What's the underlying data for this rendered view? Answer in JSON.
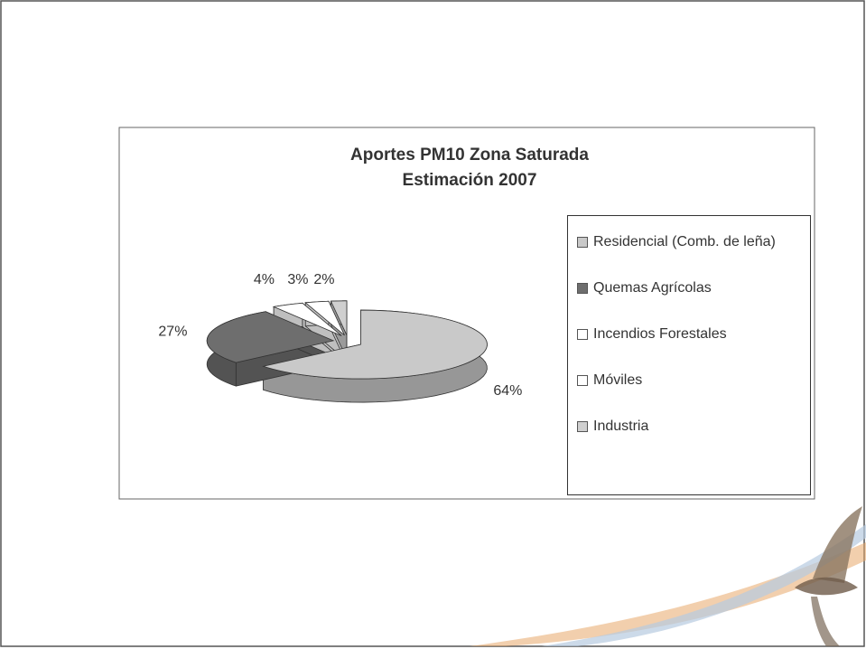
{
  "chart_data": {
    "type": "pie",
    "title": "Aportes PM10 Zona Saturada",
    "subtitle": "Estimación 2007",
    "categories": [
      "Residencial (Comb. de leña)",
      "Quemas Agrícolas",
      "Incendios Forestales",
      "Móviles",
      "Industria"
    ],
    "values": [
      64,
      27,
      4,
      3,
      2
    ],
    "value_labels": [
      "64%",
      "27%",
      "4%",
      "3%",
      "2%"
    ],
    "colors": [
      "#c9c9c9",
      "#6e6e6e",
      "#ffffff",
      "#ffffff",
      "#cfcfcf"
    ],
    "legend": "right"
  }
}
